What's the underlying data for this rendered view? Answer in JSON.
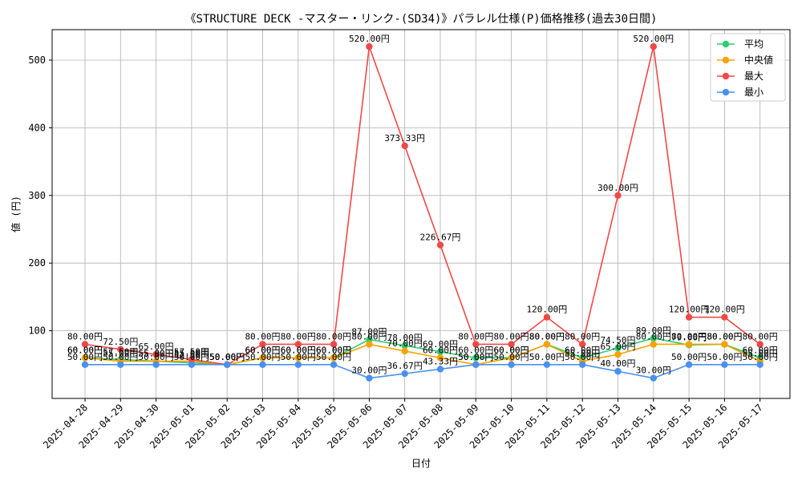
{
  "chart_data": {
    "type": "line",
    "title": "《STRUCTURE DECK -マスター・リンク-(SD34)》パラレル仕様(P)価格推移(過去30日間)",
    "xlabel": "日付",
    "ylabel": "値 (円)",
    "ylim": [
      0,
      545
    ],
    "yticks": [
      100,
      200,
      300,
      400,
      500
    ],
    "grid": true,
    "legend_position": "top-right",
    "value_suffix": "円",
    "categories": [
      "2025-04-28",
      "2025-04-29",
      "2025-04-30",
      "2025-05-01",
      "2025-05-02",
      "2025-05-03",
      "2025-05-04",
      "2025-05-05",
      "2025-05-06",
      "2025-05-07",
      "2025-05-08",
      "2025-05-09",
      "2025-05-10",
      "2025-05-11",
      "2025-05-12",
      "2025-05-13",
      "2025-05-14",
      "2025-05-15",
      "2025-05-16",
      "2025-05-17"
    ],
    "series": [
      {
        "name": "平均",
        "color": "#2ecc71",
        "values": [
          60,
          57.5,
          55,
          52.5,
          50,
          60,
          60,
          60,
          87,
          78,
          69,
          60,
          60,
          80,
          60,
          74.5,
          89,
          79,
          80,
          60
        ]
      },
      {
        "name": "中央値",
        "color": "#f5a300",
        "values": [
          60,
          55,
          55,
          55,
          50,
          60,
          60,
          60,
          80,
          70,
          60,
          50,
          60,
          80,
          55,
          65,
          80,
          80,
          80,
          55
        ]
      },
      {
        "name": "最大",
        "color": "#f04848",
        "values": [
          80,
          72.5,
          65,
          57.5,
          50,
          80,
          80,
          80,
          520,
          373.33,
          226.67,
          80,
          80,
          120,
          80,
          300,
          520,
          120,
          120,
          80
        ]
      },
      {
        "name": "最小",
        "color": "#4a90f0",
        "values": [
          50,
          50,
          50,
          50,
          50,
          50,
          50,
          50,
          30,
          36.67,
          43.33,
          50,
          50,
          50,
          50,
          40,
          30,
          50,
          50,
          50
        ]
      }
    ]
  }
}
